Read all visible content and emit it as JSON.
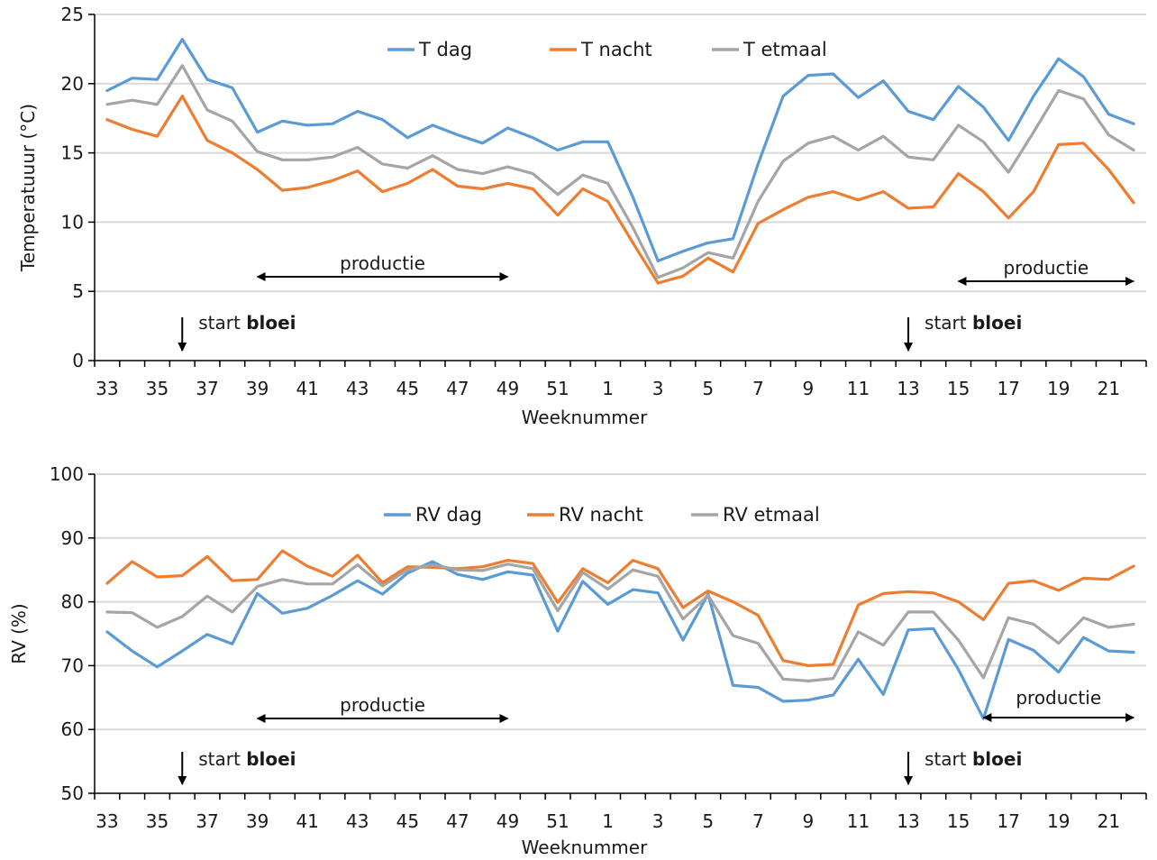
{
  "colors": {
    "dag": "#5b9bd5",
    "nacht": "#ed7d31",
    "etmaal": "#a5a5a5",
    "grid": "#d9d9d9",
    "axis": "#000000"
  },
  "chart_data": [
    {
      "type": "line",
      "ylabel": "Temperatuuur (°C)",
      "xlabel": "Weeknummer",
      "ylim": [
        0,
        25
      ],
      "yticks": [
        "0",
        "5",
        "10",
        "15",
        "20",
        "25"
      ],
      "grid": true,
      "legend": "top-center",
      "x": [
        "33",
        "34",
        "35",
        "36",
        "37",
        "38",
        "39",
        "40",
        "41",
        "42",
        "43",
        "44",
        "45",
        "46",
        "47",
        "48",
        "49",
        "50",
        "51",
        "52",
        "1",
        "2",
        "3",
        "4",
        "5",
        "6",
        "7",
        "8",
        "9",
        "10",
        "11",
        "12",
        "13",
        "14",
        "15",
        "16",
        "17",
        "18",
        "19",
        "20",
        "21",
        "22"
      ],
      "xtick_labels": [
        "33",
        "35",
        "37",
        "39",
        "41",
        "43",
        "45",
        "47",
        "49",
        "51",
        "1",
        "3",
        "5",
        "7",
        "9",
        "11",
        "13",
        "15",
        "17",
        "19",
        "21"
      ],
      "series": [
        {
          "name": "T dag",
          "color": "#5b9bd5",
          "values": [
            19.5,
            20.4,
            20.3,
            23.2,
            20.3,
            19.7,
            16.5,
            17.3,
            17.0,
            17.1,
            18.0,
            17.4,
            16.1,
            17.0,
            16.3,
            15.7,
            16.8,
            16.1,
            15.2,
            15.8,
            15.8,
            11.8,
            7.2,
            7.9,
            8.5,
            8.8,
            14.2,
            19.1,
            20.6,
            20.7,
            19.0,
            20.2,
            18.0,
            17.4,
            19.8,
            18.3,
            15.9,
            19.1,
            21.8,
            20.5,
            17.8,
            17.1
          ]
        },
        {
          "name": "T nacht",
          "color": "#ed7d31",
          "values": [
            17.4,
            16.7,
            16.2,
            19.1,
            15.9,
            15.0,
            13.8,
            12.3,
            12.5,
            13.0,
            13.7,
            12.2,
            12.8,
            13.8,
            12.6,
            12.4,
            12.8,
            12.4,
            10.5,
            12.4,
            11.5,
            8.5,
            5.6,
            6.1,
            7.4,
            6.4,
            9.9,
            10.9,
            11.8,
            12.2,
            11.6,
            12.2,
            11.0,
            11.1,
            13.5,
            12.2,
            10.3,
            12.2,
            15.6,
            15.7,
            13.8,
            11.4
          ]
        },
        {
          "name": "T etmaal",
          "color": "#a5a5a5",
          "values": [
            18.5,
            18.8,
            18.5,
            21.3,
            18.1,
            17.3,
            15.1,
            14.5,
            14.5,
            14.7,
            15.4,
            14.2,
            13.9,
            14.8,
            13.8,
            13.5,
            14.0,
            13.5,
            12.0,
            13.4,
            12.8,
            9.6,
            6.0,
            6.7,
            7.8,
            7.4,
            11.5,
            14.4,
            15.7,
            16.2,
            15.2,
            16.2,
            14.7,
            14.5,
            17.0,
            15.8,
            13.6,
            16.5,
            19.5,
            18.9,
            16.3,
            15.2
          ]
        }
      ],
      "annotations": {
        "productie_left": {
          "text": "productie",
          "from_week": "39",
          "to_week": "49"
        },
        "productie_right": {
          "text": "productie",
          "from_week": "15",
          "to_week": "22"
        },
        "bloei_1": {
          "prefix": "start ",
          "bold": "bloei",
          "week": "36"
        },
        "bloei_2": {
          "prefix": "start ",
          "bold": "bloei",
          "week": "13"
        }
      }
    },
    {
      "type": "line",
      "ylabel": "RV (%)",
      "xlabel": "Weeknummer",
      "ylim": [
        50,
        100
      ],
      "yticks": [
        "50",
        "60",
        "70",
        "80",
        "90",
        "100"
      ],
      "grid": true,
      "legend": "top-center",
      "x": [
        "33",
        "34",
        "35",
        "36",
        "37",
        "38",
        "39",
        "40",
        "41",
        "42",
        "43",
        "44",
        "45",
        "46",
        "47",
        "48",
        "49",
        "50",
        "51",
        "52",
        "1",
        "2",
        "3",
        "4",
        "5",
        "6",
        "7",
        "8",
        "9",
        "10",
        "11",
        "12",
        "13",
        "14",
        "15",
        "16",
        "17",
        "18",
        "19",
        "20",
        "21",
        "22"
      ],
      "xtick_labels": [
        "33",
        "35",
        "37",
        "39",
        "41",
        "43",
        "45",
        "47",
        "49",
        "51",
        "1",
        "3",
        "5",
        "7",
        "9",
        "11",
        "13",
        "15",
        "17",
        "19",
        "21"
      ],
      "series": [
        {
          "name": "RV dag",
          "color": "#5b9bd5",
          "values": [
            75.3,
            72.3,
            69.8,
            72.3,
            74.9,
            73.4,
            81.3,
            78.2,
            79.0,
            81.0,
            83.3,
            81.2,
            84.5,
            86.3,
            84.3,
            83.5,
            84.7,
            84.2,
            75.4,
            83.2,
            79.6,
            81.9,
            81.4,
            74.0,
            81.2,
            66.9,
            66.6,
            64.4,
            64.6,
            65.4,
            71.0,
            65.5,
            75.6,
            75.8,
            69.4,
            61.7,
            74.1,
            72.4,
            69.0,
            74.4,
            72.3,
            72.1
          ]
        },
        {
          "name": "RV nacht",
          "color": "#ed7d31",
          "values": [
            82.9,
            86.3,
            83.9,
            84.1,
            87.1,
            83.3,
            83.5,
            88.0,
            85.6,
            84.0,
            87.3,
            83.0,
            85.5,
            85.4,
            85.2,
            85.5,
            86.5,
            86.0,
            79.9,
            85.2,
            83.0,
            86.5,
            85.2,
            79.1,
            81.7,
            80.0,
            77.9,
            70.8,
            70.0,
            70.2,
            79.5,
            81.3,
            81.6,
            81.4,
            80.0,
            77.2,
            82.9,
            83.3,
            81.8,
            83.7,
            83.5,
            85.6
          ]
        },
        {
          "name": "RV etmaal",
          "color": "#a5a5a5",
          "values": [
            78.4,
            78.3,
            76.0,
            77.7,
            80.9,
            78.4,
            82.4,
            83.5,
            82.8,
            82.8,
            85.8,
            82.5,
            85.0,
            85.8,
            85.0,
            84.9,
            85.9,
            85.2,
            78.6,
            84.6,
            82.0,
            85.0,
            84.0,
            77.3,
            81.0,
            74.7,
            73.5,
            67.9,
            67.6,
            68.0,
            75.3,
            73.2,
            78.4,
            78.4,
            74.0,
            68.1,
            77.5,
            76.5,
            73.5,
            77.5,
            76.0,
            76.5
          ]
        }
      ],
      "annotations": {
        "productie_left": {
          "text": "productie",
          "from_week": "39",
          "to_week": "49"
        },
        "productie_right": {
          "text": "productie",
          "from_week": "16",
          "to_week": "22"
        },
        "bloei_1": {
          "prefix": "start ",
          "bold": "bloei",
          "week": "36"
        },
        "bloei_2": {
          "prefix": "start ",
          "bold": "bloei",
          "week": "13"
        }
      }
    }
  ]
}
